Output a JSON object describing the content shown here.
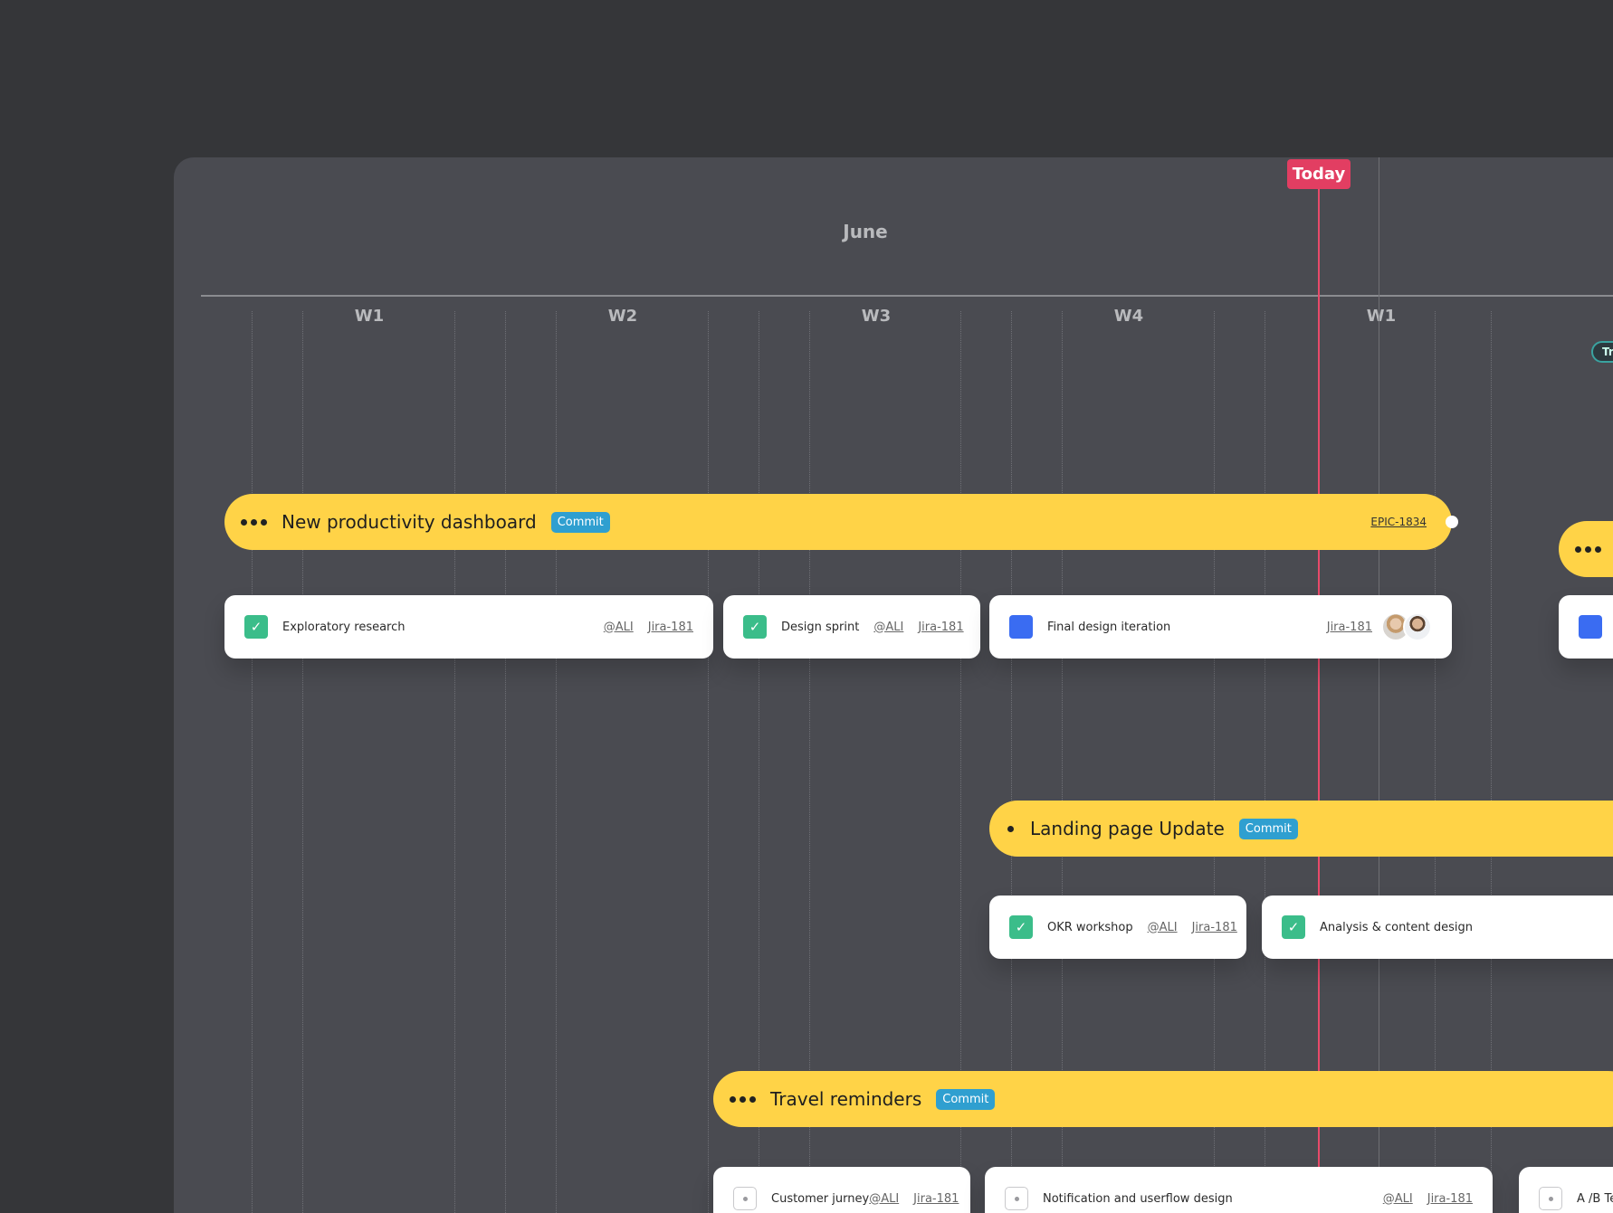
{
  "timeline": {
    "month": "June",
    "today_label": "Today",
    "weeks": [
      "W1",
      "W2",
      "W3",
      "W4",
      "W1"
    ],
    "offscreen_pill": "Tr"
  },
  "epics": [
    {
      "title": "New productivity dashboard",
      "badge": "Commit",
      "ref": "EPIC-1834",
      "tasks": [
        {
          "label": "Exploratory research",
          "status": "done",
          "assignee": "@ALI",
          "ticket": "Jira-181"
        },
        {
          "label": "Design sprint",
          "status": "done",
          "assignee": "@ALI",
          "ticket": "Jira-181"
        },
        {
          "label": "Final design iteration",
          "status": "in-progress",
          "ticket": "Jira-181"
        }
      ]
    },
    {
      "title": "Landing page Update",
      "badge": "Commit",
      "tasks": [
        {
          "label": "OKR workshop",
          "status": "done",
          "assignee": "@ALI",
          "ticket": "Jira-181"
        },
        {
          "label": "Analysis & content design",
          "status": "done"
        }
      ]
    },
    {
      "title": "Travel reminders",
      "badge": "Commit",
      "tasks": [
        {
          "label": "Customer jurney",
          "status": "todo",
          "assignee": "@ALI",
          "ticket": "Jira-181"
        },
        {
          "label": "Notification and userflow design",
          "status": "todo",
          "assignee": "@ALI",
          "ticket": "Jira-181"
        },
        {
          "label": "A /B Te",
          "status": "todo"
        }
      ]
    }
  ],
  "colors": {
    "epic_bar": "#ffd347",
    "commit_badge": "#2f9fd0",
    "done_check": "#3bbd8a",
    "in_progress": "#3a6cf2",
    "today": "#e23e62"
  }
}
